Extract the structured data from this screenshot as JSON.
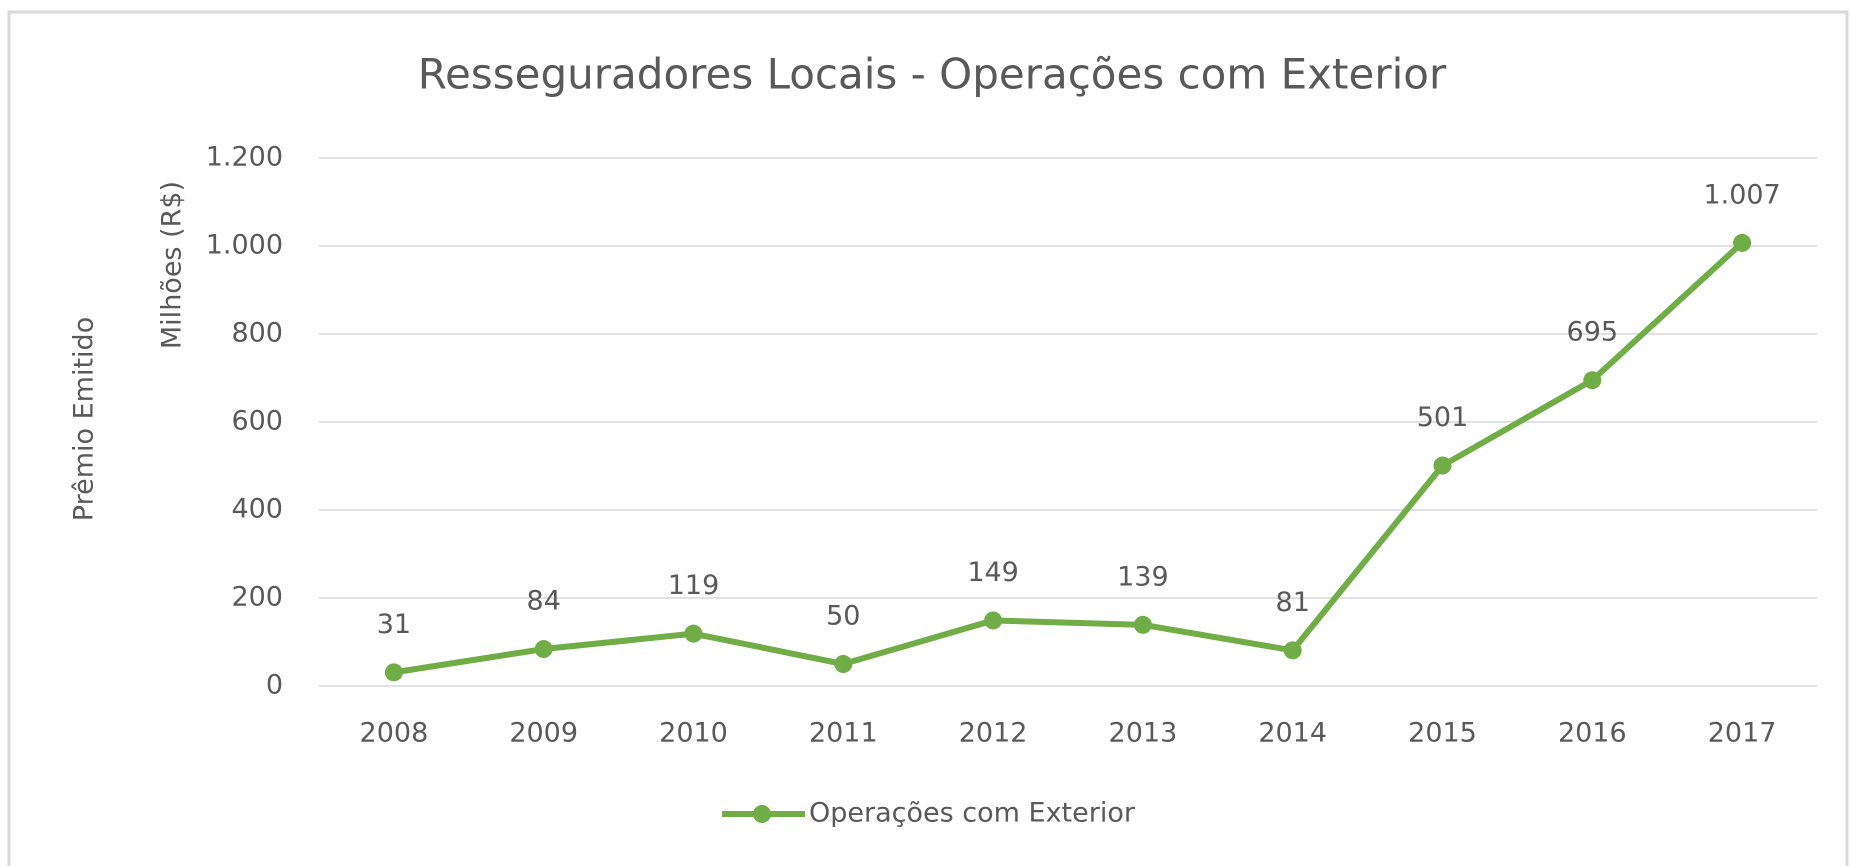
{
  "chart_data": {
    "type": "line",
    "title": "Resseguradores  Locais - Operações com Exterior",
    "y_axis_labels": [
      "Prêmio Emitido",
      "Milhões (R$)"
    ],
    "categories": [
      "2008",
      "2009",
      "2010",
      "2011",
      "2012",
      "2013",
      "2014",
      "2015",
      "2016",
      "2017"
    ],
    "series": [
      {
        "name": "Operações com Exterior",
        "color": "#70ad47",
        "values": [
          31,
          84,
          119,
          50,
          149,
          139,
          81,
          501,
          695,
          1007
        ],
        "value_labels": [
          "31",
          "84",
          "119",
          "50",
          "149",
          "139",
          "81",
          "501",
          "695",
          "1.007"
        ]
      }
    ],
    "ylim": [
      0,
      1200
    ],
    "yticks": [
      0,
      200,
      400,
      600,
      800,
      {
        "value": 1000,
        "label": "1.000"
      },
      {
        "value": 1200,
        "label": "1.200"
      }
    ],
    "grid": true,
    "legend": "bottom"
  }
}
